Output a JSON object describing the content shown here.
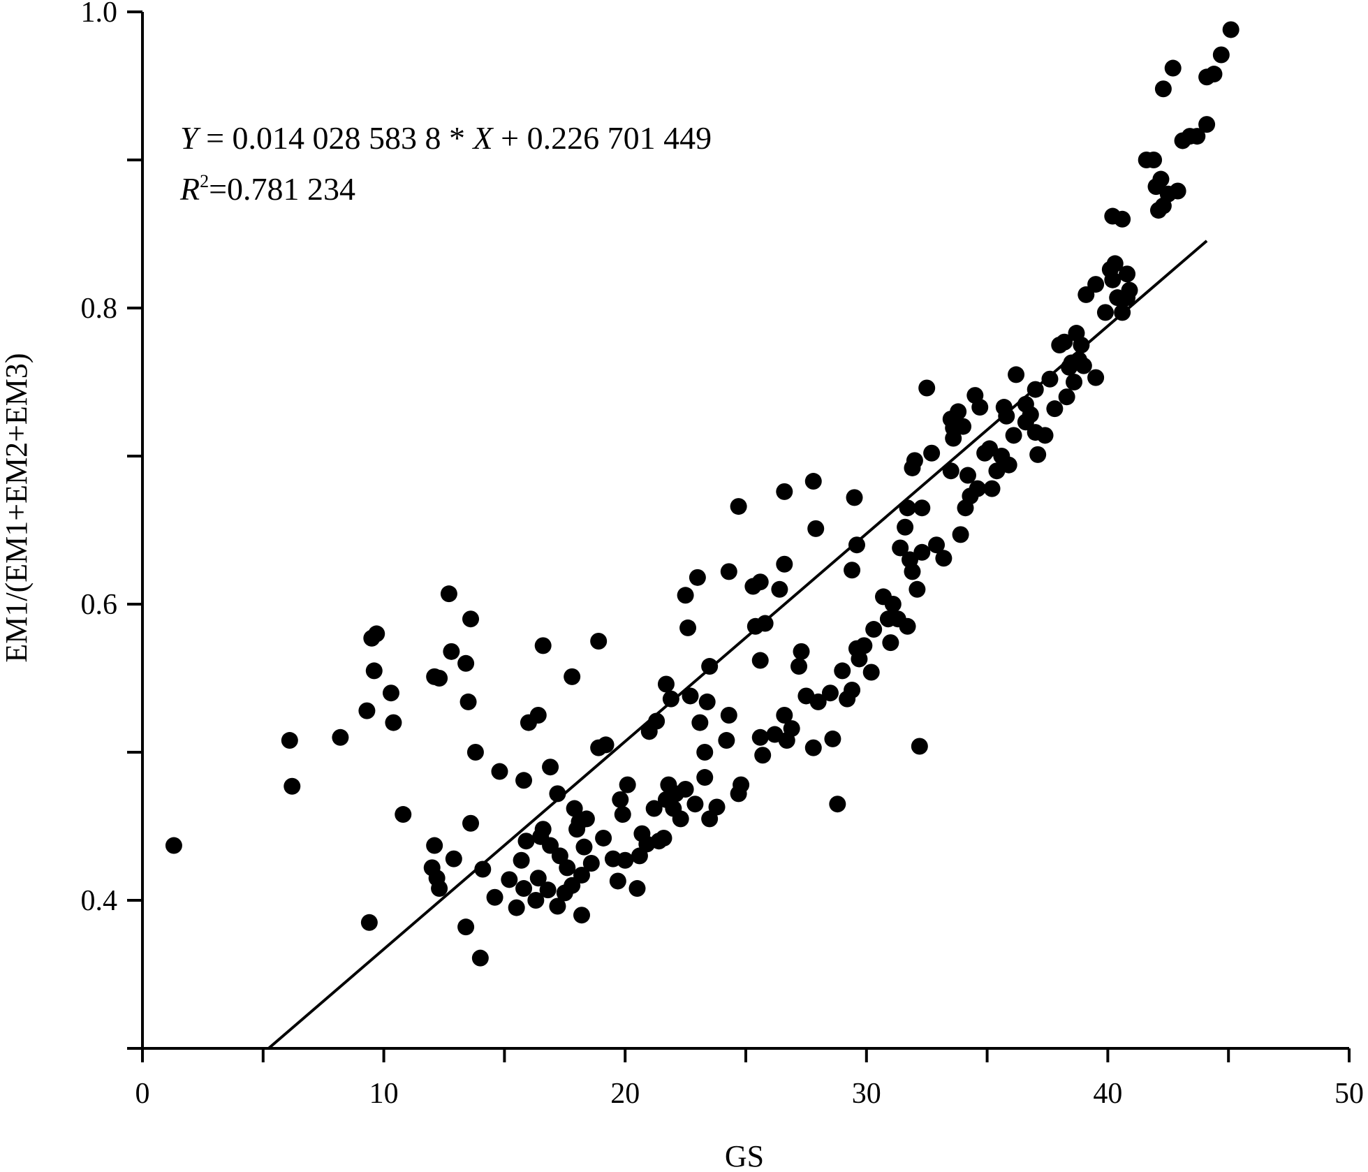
{
  "chart_data": {
    "type": "scatter",
    "xlabel": "GS",
    "ylabel": "EM1/(EM1+EM2+EM3)",
    "xlim": [
      0,
      50
    ],
    "ylim": [
      0.3,
      1.0
    ],
    "x_ticks": [
      "0",
      "10",
      "20",
      "30",
      "40",
      "50"
    ],
    "y_ticks": [
      "0.4",
      "0.6",
      "0.8",
      "1.0"
    ],
    "grid": false,
    "annotations": {
      "equation": {
        "y_var": "Y",
        "eq_part1": " = 0.014 028 583 8 * ",
        "x_var": "X",
        "eq_part2": " + 0.226 701 449"
      },
      "r2": {
        "var": "R",
        "sup": "2",
        "value": "=0.781 234"
      }
    },
    "fit_line": {
      "slope": 0.0140285838,
      "intercept": 0.226701449,
      "x_range": [
        5.2,
        44.1
      ]
    },
    "points": [
      [
        1.3,
        0.437
      ],
      [
        6.1,
        0.508
      ],
      [
        6.2,
        0.477
      ],
      [
        8.2,
        0.51
      ],
      [
        9.3,
        0.528
      ],
      [
        9.4,
        0.385
      ],
      [
        9.5,
        0.577
      ],
      [
        9.7,
        0.58
      ],
      [
        9.6,
        0.555
      ],
      [
        10.3,
        0.54
      ],
      [
        10.4,
        0.52
      ],
      [
        10.8,
        0.458
      ],
      [
        12.0,
        0.422
      ],
      [
        12.1,
        0.437
      ],
      [
        12.2,
        0.415
      ],
      [
        12.3,
        0.408
      ],
      [
        12.1,
        0.551
      ],
      [
        12.3,
        0.55
      ],
      [
        12.7,
        0.607
      ],
      [
        12.8,
        0.568
      ],
      [
        12.9,
        0.428
      ],
      [
        13.4,
        0.382
      ],
      [
        13.5,
        0.534
      ],
      [
        13.4,
        0.56
      ],
      [
        13.6,
        0.59
      ],
      [
        13.6,
        0.452
      ],
      [
        13.8,
        0.5
      ],
      [
        14.0,
        0.361
      ],
      [
        14.1,
        0.421
      ],
      [
        14.6,
        0.402
      ],
      [
        14.8,
        0.487
      ],
      [
        15.2,
        0.414
      ],
      [
        15.5,
        0.395
      ],
      [
        15.8,
        0.408
      ],
      [
        15.7,
        0.427
      ],
      [
        15.8,
        0.481
      ],
      [
        15.9,
        0.44
      ],
      [
        16.0,
        0.52
      ],
      [
        16.3,
        0.4
      ],
      [
        16.4,
        0.415
      ],
      [
        16.5,
        0.443
      ],
      [
        16.6,
        0.448
      ],
      [
        16.6,
        0.572
      ],
      [
        16.4,
        0.525
      ],
      [
        16.9,
        0.437
      ],
      [
        16.9,
        0.49
      ],
      [
        16.8,
        0.407
      ],
      [
        17.2,
        0.396
      ],
      [
        17.2,
        0.472
      ],
      [
        17.3,
        0.43
      ],
      [
        17.5,
        0.405
      ],
      [
        17.6,
        0.422
      ],
      [
        17.8,
        0.41
      ],
      [
        17.8,
        0.551
      ],
      [
        17.9,
        0.462
      ],
      [
        18.0,
        0.448
      ],
      [
        18.1,
        0.453
      ],
      [
        18.2,
        0.417
      ],
      [
        18.3,
        0.436
      ],
      [
        18.2,
        0.39
      ],
      [
        18.4,
        0.455
      ],
      [
        18.6,
        0.425
      ],
      [
        18.9,
        0.575
      ],
      [
        18.9,
        0.503
      ],
      [
        19.1,
        0.442
      ],
      [
        19.2,
        0.505
      ],
      [
        19.5,
        0.428
      ],
      [
        19.7,
        0.413
      ],
      [
        19.8,
        0.468
      ],
      [
        19.9,
        0.458
      ],
      [
        20.0,
        0.427
      ],
      [
        20.1,
        0.478
      ],
      [
        20.5,
        0.408
      ],
      [
        20.6,
        0.43
      ],
      [
        20.7,
        0.445
      ],
      [
        20.9,
        0.438
      ],
      [
        21.0,
        0.514
      ],
      [
        21.2,
        0.462
      ],
      [
        21.3,
        0.521
      ],
      [
        21.4,
        0.44
      ],
      [
        21.6,
        0.442
      ],
      [
        21.7,
        0.468
      ],
      [
        21.7,
        0.546
      ],
      [
        21.8,
        0.478
      ],
      [
        21.9,
        0.536
      ],
      [
        22.0,
        0.462
      ],
      [
        22.1,
        0.472
      ],
      [
        22.3,
        0.455
      ],
      [
        22.5,
        0.475
      ],
      [
        22.5,
        0.606
      ],
      [
        22.6,
        0.584
      ],
      [
        22.7,
        0.538
      ],
      [
        22.9,
        0.465
      ],
      [
        23.1,
        0.52
      ],
      [
        23.0,
        0.618
      ],
      [
        23.3,
        0.483
      ],
      [
        23.3,
        0.5
      ],
      [
        23.4,
        0.534
      ],
      [
        23.5,
        0.455
      ],
      [
        23.5,
        0.558
      ],
      [
        23.8,
        0.463
      ],
      [
        24.2,
        0.508
      ],
      [
        24.3,
        0.525
      ],
      [
        24.3,
        0.622
      ],
      [
        24.7,
        0.472
      ],
      [
        24.8,
        0.478
      ],
      [
        24.7,
        0.666
      ],
      [
        25.3,
        0.612
      ],
      [
        25.4,
        0.585
      ],
      [
        25.6,
        0.562
      ],
      [
        25.6,
        0.51
      ],
      [
        25.7,
        0.498
      ],
      [
        25.6,
        0.615
      ],
      [
        25.8,
        0.587
      ],
      [
        26.2,
        0.512
      ],
      [
        26.4,
        0.61
      ],
      [
        26.6,
        0.525
      ],
      [
        26.6,
        0.627
      ],
      [
        26.6,
        0.676
      ],
      [
        26.7,
        0.508
      ],
      [
        26.9,
        0.516
      ],
      [
        27.2,
        0.558
      ],
      [
        27.3,
        0.568
      ],
      [
        27.5,
        0.538
      ],
      [
        27.8,
        0.503
      ],
      [
        27.8,
        0.683
      ],
      [
        27.9,
        0.651
      ],
      [
        28.0,
        0.534
      ],
      [
        28.5,
        0.54
      ],
      [
        28.6,
        0.509
      ],
      [
        28.8,
        0.465
      ],
      [
        29.0,
        0.555
      ],
      [
        29.2,
        0.536
      ],
      [
        29.4,
        0.542
      ],
      [
        29.4,
        0.623
      ],
      [
        29.5,
        0.672
      ],
      [
        29.6,
        0.64
      ],
      [
        29.6,
        0.57
      ],
      [
        29.7,
        0.563
      ],
      [
        29.9,
        0.572
      ],
      [
        30.2,
        0.554
      ],
      [
        30.3,
        0.583
      ],
      [
        30.7,
        0.605
      ],
      [
        30.9,
        0.59
      ],
      [
        31.0,
        0.574
      ],
      [
        31.1,
        0.6
      ],
      [
        31.3,
        0.59
      ],
      [
        31.4,
        0.638
      ],
      [
        31.6,
        0.652
      ],
      [
        31.7,
        0.585
      ],
      [
        31.7,
        0.665
      ],
      [
        31.8,
        0.63
      ],
      [
        31.9,
        0.622
      ],
      [
        31.9,
        0.692
      ],
      [
        32.0,
        0.697
      ],
      [
        32.1,
        0.61
      ],
      [
        32.2,
        0.504
      ],
      [
        32.3,
        0.665
      ],
      [
        32.3,
        0.635
      ],
      [
        32.5,
        0.746
      ],
      [
        32.7,
        0.702
      ],
      [
        32.9,
        0.64
      ],
      [
        33.2,
        0.631
      ],
      [
        33.5,
        0.69
      ],
      [
        33.5,
        0.725
      ],
      [
        33.6,
        0.719
      ],
      [
        33.6,
        0.712
      ],
      [
        33.8,
        0.73
      ],
      [
        33.9,
        0.647
      ],
      [
        34.0,
        0.72
      ],
      [
        34.1,
        0.665
      ],
      [
        34.2,
        0.687
      ],
      [
        34.3,
        0.673
      ],
      [
        34.5,
        0.741
      ],
      [
        34.6,
        0.678
      ],
      [
        34.7,
        0.733
      ],
      [
        34.9,
        0.702
      ],
      [
        35.1,
        0.705
      ],
      [
        35.2,
        0.678
      ],
      [
        35.4,
        0.69
      ],
      [
        35.6,
        0.7
      ],
      [
        35.7,
        0.733
      ],
      [
        35.8,
        0.727
      ],
      [
        35.9,
        0.694
      ],
      [
        36.1,
        0.714
      ],
      [
        36.2,
        0.755
      ],
      [
        36.6,
        0.735
      ],
      [
        36.6,
        0.723
      ],
      [
        36.8,
        0.728
      ],
      [
        37.0,
        0.716
      ],
      [
        37.0,
        0.745
      ],
      [
        37.1,
        0.701
      ],
      [
        37.4,
        0.714
      ],
      [
        37.6,
        0.752
      ],
      [
        37.8,
        0.732
      ],
      [
        38.0,
        0.775
      ],
      [
        38.2,
        0.777
      ],
      [
        38.3,
        0.74
      ],
      [
        38.4,
        0.76
      ],
      [
        38.5,
        0.763
      ],
      [
        38.6,
        0.75
      ],
      [
        38.7,
        0.783
      ],
      [
        38.8,
        0.765
      ],
      [
        38.9,
        0.775
      ],
      [
        39.1,
        0.809
      ],
      [
        39.0,
        0.761
      ],
      [
        39.5,
        0.753
      ],
      [
        39.5,
        0.816
      ],
      [
        39.9,
        0.797
      ],
      [
        40.1,
        0.826
      ],
      [
        40.2,
        0.862
      ],
      [
        40.2,
        0.819
      ],
      [
        40.3,
        0.83
      ],
      [
        40.4,
        0.807
      ],
      [
        40.6,
        0.86
      ],
      [
        40.6,
        0.797
      ],
      [
        40.8,
        0.807
      ],
      [
        40.8,
        0.823
      ],
      [
        40.9,
        0.812
      ],
      [
        41.6,
        0.9
      ],
      [
        41.9,
        0.9
      ],
      [
        42.0,
        0.882
      ],
      [
        42.1,
        0.866
      ],
      [
        42.2,
        0.887
      ],
      [
        42.3,
        0.869
      ],
      [
        42.3,
        0.948
      ],
      [
        42.5,
        0.877
      ],
      [
        42.7,
        0.962
      ],
      [
        42.9,
        0.879
      ],
      [
        43.1,
        0.913
      ],
      [
        43.4,
        0.916
      ],
      [
        43.7,
        0.916
      ],
      [
        44.1,
        0.924
      ],
      [
        44.1,
        0.956
      ],
      [
        44.4,
        0.958
      ],
      [
        44.7,
        0.971
      ],
      [
        45.1,
        0.988
      ]
    ]
  }
}
